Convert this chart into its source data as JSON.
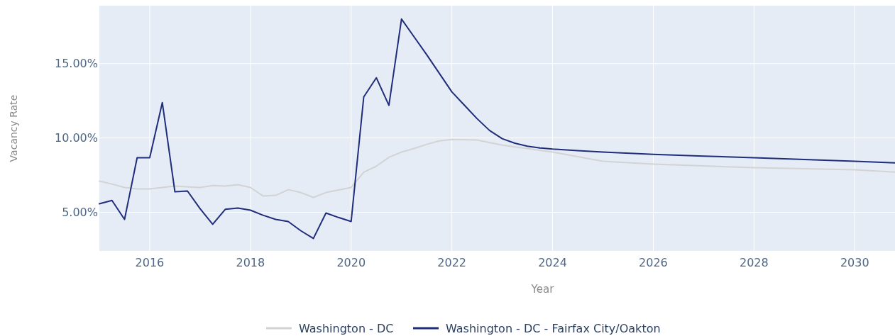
{
  "chart_data": {
    "type": "line",
    "xlabel": "Year",
    "ylabel": "Vacancy Rate",
    "xlim": [
      2015,
      2030.8
    ],
    "xticks": [
      2016,
      2018,
      2020,
      2022,
      2024,
      2026,
      2028,
      2030
    ],
    "ylim": [
      2.4,
      18.9
    ],
    "yticks": [
      {
        "value": 5,
        "label": "5.00%"
      },
      {
        "value": 10,
        "label": "10.00%"
      },
      {
        "value": 15,
        "label": "15.00%"
      }
    ],
    "grid": true,
    "legend": "bottom",
    "marker": "none",
    "line_style": "solid",
    "series": [
      {
        "name": "Washington - DC",
        "color": "#d3d3d3",
        "x": [
          2015,
          2015.25,
          2015.5,
          2015.75,
          2016,
          2016.5,
          2017,
          2017.25,
          2017.5,
          2017.75,
          2018,
          2018.25,
          2018.5,
          2018.75,
          2019,
          2019.25,
          2019.5,
          2020,
          2020.25,
          2020.5,
          2020.75,
          2021,
          2021.25,
          2021.5,
          2021.75,
          2022,
          2022.5,
          2023,
          2024,
          2025,
          2026,
          2028,
          2030,
          2030.8
        ],
        "values": [
          7.1,
          6.9,
          6.67,
          6.57,
          6.57,
          6.76,
          6.67,
          6.8,
          6.76,
          6.86,
          6.67,
          6.1,
          6.14,
          6.52,
          6.33,
          6.0,
          6.33,
          6.67,
          7.7,
          8.1,
          8.7,
          9.05,
          9.29,
          9.57,
          9.8,
          9.9,
          9.86,
          9.52,
          9.05,
          8.43,
          8.24,
          8.0,
          7.86,
          7.71
        ]
      },
      {
        "name": "Washington - DC - Fairfax City/Oakton",
        "color": "#1f2d7a",
        "x": [
          2015,
          2015.25,
          2015.5,
          2015.75,
          2016,
          2016.25,
          2016.5,
          2016.75,
          2017,
          2017.25,
          2017.5,
          2017.75,
          2018,
          2018.25,
          2018.5,
          2018.75,
          2019,
          2019.25,
          2019.5,
          2019.75,
          2020,
          2020.25,
          2020.5,
          2020.75,
          2021,
          2021.25,
          2021.5,
          2021.75,
          2022,
          2022.25,
          2022.5,
          2022.75,
          2023,
          2023.25,
          2023.5,
          2023.75,
          2024,
          2024.5,
          2025,
          2026,
          2027,
          2028,
          2029,
          2030,
          2030.8
        ],
        "values": [
          5.57,
          5.8,
          4.52,
          8.67,
          8.67,
          12.38,
          6.38,
          6.43,
          5.24,
          4.19,
          5.2,
          5.29,
          5.14,
          4.8,
          4.52,
          4.38,
          3.76,
          3.24,
          4.95,
          4.65,
          4.38,
          12.76,
          14.05,
          12.19,
          18.0,
          16.8,
          15.6,
          14.35,
          13.1,
          12.2,
          11.3,
          10.5,
          9.95,
          9.65,
          9.45,
          9.33,
          9.25,
          9.15,
          9.05,
          8.9,
          8.78,
          8.67,
          8.55,
          8.43,
          8.33
        ]
      }
    ]
  }
}
